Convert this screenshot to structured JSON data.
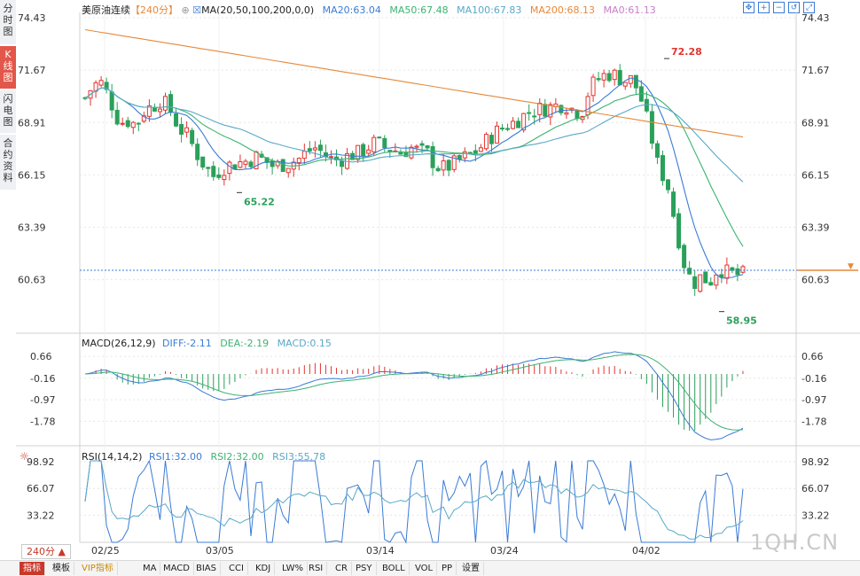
{
  "sidebar": {
    "items": [
      {
        "label": "分\n时\n图",
        "active": false
      },
      {
        "label": "K\n线\n图",
        "active": true
      },
      {
        "label": "闪\n电\n图",
        "active": false
      },
      {
        "label": "合\n约\n资\n料",
        "active": false
      }
    ]
  },
  "header": {
    "name": "美原油连续",
    "period": "【240分】",
    "ma_label": "MA(20,50,100,200,0,0)",
    "ma20": "MA20:63.04",
    "ma50": "MA50:67.48",
    "ma100": "MA100:67.83",
    "ma200": "MA200:68.13",
    "ma0": "MA0:61.13"
  },
  "toolbar_icons": [
    "crosshair-icon",
    "zoom-in-icon",
    "zoom-out-icon",
    "undo-icon",
    "fullscreen-icon"
  ],
  "colors": {
    "up": "#e3342f",
    "down": "#2aa05a",
    "ma20": "#3a7bd5",
    "ma50": "#3cb371",
    "ma100": "#5aa8c8",
    "ma200": "#e6893a",
    "grid": "#e6e6e6",
    "dif": "#3a7bd5",
    "dea": "#3cb371",
    "rsi1": "#3a7bd5",
    "rsi2": "#3cb371",
    "rsi3": "#5aa8c8"
  },
  "price_axis": [
    "74.43",
    "71.67",
    "68.91",
    "66.15",
    "63.39",
    "60.63"
  ],
  "price_annotations": {
    "high": "72.28",
    "low1": "65.22",
    "low2": "58.95"
  },
  "macd_header": {
    "label": "MACD(26,12,9)",
    "diff": "DIFF:-2.11",
    "dea": "DEA:-2.19",
    "macd": "MACD:0.15"
  },
  "macd_axis": [
    "0.66",
    "-0.16",
    "-0.97",
    "-1.78"
  ],
  "rsi_header": {
    "label": "RSI(14,14,2)",
    "rsi1": "RSI1:32.00",
    "rsi2": "RSI2:32.00",
    "rsi3": "RSI3:55.78"
  },
  "rsi_axis": [
    "98.92",
    "66.07",
    "33.22"
  ],
  "date_labels": [
    "02/25",
    "03/05",
    "03/14",
    "03/24",
    "04/02"
  ],
  "period_select": "240分 ▲",
  "watermark": "1QH.CN",
  "bottom_bar": [
    "指标",
    "模板",
    "VIP指标",
    "MA",
    "MACD",
    "BIAS",
    "CCI",
    "KDJ",
    "LW%",
    "RSI",
    "CR",
    "PSY",
    "BOLL",
    "VOL",
    "PP",
    "设置"
  ],
  "chart_data": {
    "type": "candlestick",
    "n_bars": 124,
    "price_ylim": [
      58.0,
      74.43
    ],
    "price_ticks": [
      74.43,
      71.67,
      68.91,
      66.15,
      63.39,
      60.63
    ],
    "close_path": [
      [
        0,
        70.2
      ],
      [
        4,
        70.9
      ],
      [
        8,
        71.0
      ],
      [
        12,
        70.0
      ],
      [
        16,
        68.9
      ],
      [
        20,
        69.0
      ],
      [
        24,
        68.8
      ],
      [
        28,
        69.6
      ],
      [
        32,
        69.8
      ],
      [
        36,
        70.1
      ],
      [
        40,
        69.5
      ],
      [
        44,
        68.6
      ],
      [
        48,
        68.2
      ],
      [
        52,
        67.3
      ],
      [
        56,
        66.6
      ],
      [
        60,
        66.1
      ],
      [
        64,
        66.5
      ],
      [
        68,
        66.7
      ],
      [
        72,
        66.8
      ],
      [
        76,
        66.9
      ],
      [
        80,
        67.1
      ],
      [
        84,
        66.9
      ],
      [
        88,
        66.6
      ],
      [
        92,
        66.7
      ],
      [
        96,
        66.8
      ],
      [
        100,
        67.0
      ],
      [
        104,
        67.4
      ],
      [
        108,
        67.6
      ],
      [
        112,
        67.2
      ],
      [
        116,
        66.9
      ],
      [
        120,
        67.0
      ],
      [
        124,
        67.2
      ],
      [
        128,
        67.3
      ],
      [
        132,
        67.6
      ],
      [
        136,
        67.9
      ],
      [
        140,
        67.6
      ],
      [
        144,
        67.5
      ],
      [
        148,
        67.3
      ],
      [
        152,
        67.6
      ],
      [
        156,
        67.4
      ],
      [
        160,
        67.3
      ],
      [
        164,
        66.6
      ],
      [
        168,
        66.5
      ],
      [
        172,
        66.7
      ],
      [
        176,
        67.0
      ],
      [
        180,
        67.2
      ],
      [
        184,
        67.5
      ],
      [
        188,
        68.0
      ],
      [
        192,
        68.4
      ],
      [
        196,
        68.7
      ],
      [
        200,
        68.9
      ],
      [
        204,
        69.2
      ],
      [
        208,
        69.5
      ],
      [
        212,
        69.6
      ],
      [
        216,
        69.7
      ],
      [
        220,
        69.8
      ],
      [
        224,
        69.9
      ],
      [
        228,
        69.6
      ],
      [
        232,
        69.4
      ],
      [
        236,
        70.8
      ],
      [
        240,
        71.2
      ],
      [
        244,
        71.5
      ],
      [
        248,
        71.4
      ],
      [
        252,
        71.1
      ],
      [
        256,
        71.2
      ],
      [
        260,
        70.1
      ],
      [
        264,
        68.5
      ],
      [
        268,
        66.5
      ],
      [
        272,
        65.8
      ],
      [
        276,
        63.5
      ],
      [
        280,
        61.5
      ],
      [
        284,
        60.4
      ],
      [
        288,
        60.8
      ],
      [
        292,
        60.5
      ],
      [
        296,
        61.3
      ],
      [
        300,
        61.0
      ],
      [
        304,
        60.9
      ]
    ],
    "ma20_end": 63.04,
    "ma50_end": 67.48,
    "ma100_end": 67.83,
    "ma200_end": 68.13,
    "last_price": 61.13,
    "annotations": [
      {
        "label": "72.28",
        "value": 72.28
      },
      {
        "label": "65.22",
        "value": 65.22
      },
      {
        "label": "58.95",
        "value": 58.95
      }
    ],
    "macd": {
      "ylim": [
        -2.6,
        1.0
      ],
      "diff_end": -2.11,
      "dea_end": -2.19,
      "macd_end": 0.15
    },
    "rsi": {
      "ylim": [
        0,
        100
      ],
      "rsi1_end": 32.0,
      "rsi2_end": 32.0,
      "rsi3_end": 55.78
    },
    "x_labels": [
      "02/25",
      "03/05",
      "03/14",
      "03/24",
      "04/02"
    ]
  }
}
